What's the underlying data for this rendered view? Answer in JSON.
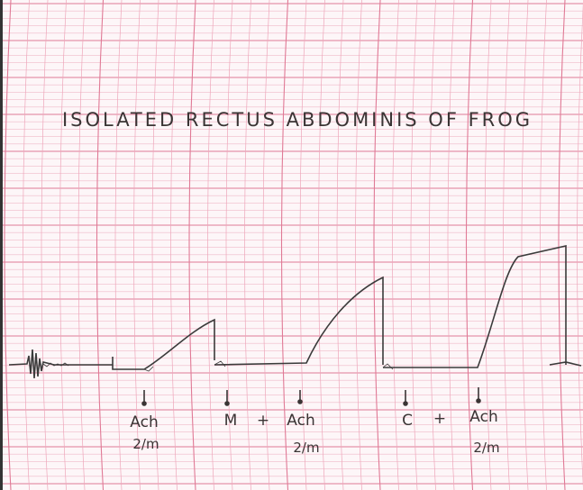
{
  "title": "ISOLATED RECTUS ABDOMINIS OF FROG",
  "markers": [
    {
      "agent": "Ach",
      "dose": "2/m"
    },
    {
      "pre": "M",
      "plus": "+",
      "agent": "Ach",
      "dose": "2/m"
    },
    {
      "pre": "C",
      "plus": "+",
      "agent": "Ach",
      "dose": "2/m"
    }
  ]
}
